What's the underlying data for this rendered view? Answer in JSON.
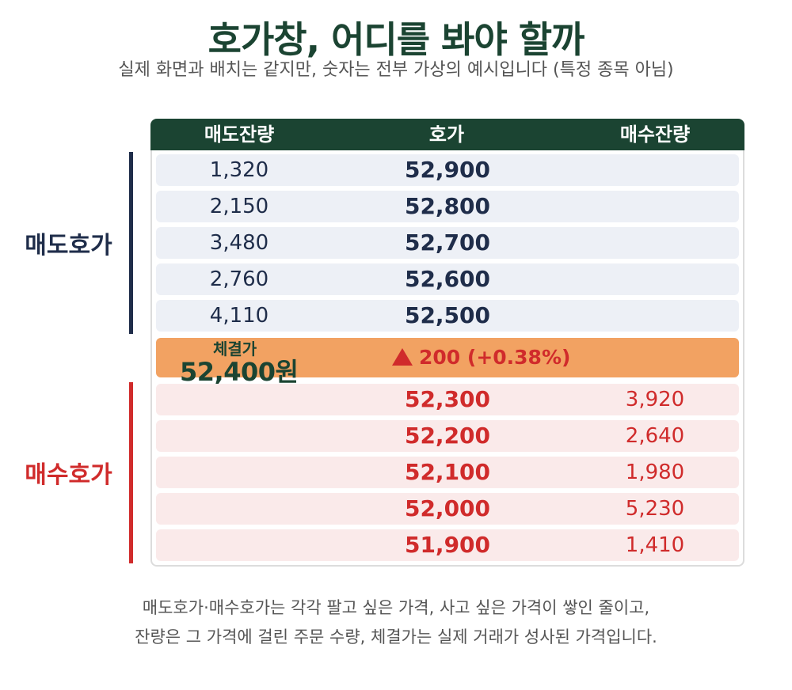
{
  "title": "호가창, 어디를 봐야 할까",
  "subtitle": "실제 화면과 배치는 같지만, 숫자는 전부 가상의 예시입니다 (특정 종목 아님)",
  "columns": {
    "ask_qty": "매도잔량",
    "price": "호가",
    "bid_qty": "매수잔량"
  },
  "ask_label": "매도호가",
  "bid_label": "매수호가",
  "asks": [
    {
      "qty": "1,320",
      "price": "52,900"
    },
    {
      "qty": "2,150",
      "price": "52,800"
    },
    {
      "qty": "3,480",
      "price": "52,700"
    },
    {
      "qty": "2,760",
      "price": "52,600"
    },
    {
      "qty": "4,110",
      "price": "52,500"
    }
  ],
  "trade": {
    "label": "체결가",
    "price": "52,400원",
    "change": "200 (+0.38%)"
  },
  "bids": [
    {
      "price": "52,300",
      "qty": "3,920"
    },
    {
      "price": "52,200",
      "qty": "2,640"
    },
    {
      "price": "52,100",
      "qty": "1,980"
    },
    {
      "price": "52,000",
      "qty": "5,230"
    },
    {
      "price": "51,900",
      "qty": "1,410"
    }
  ],
  "footer": {
    "line1": "매도호가·매수호가는 각각 팔고 싶은 가격, 사고 싶은 가격이 쌓인 줄이고,",
    "line2": "잔량은 그 가격에 걸린 주문 수량, 체결가는 실제 거래가 성사된 가격입니다."
  },
  "colors": {
    "header": "#1b4432",
    "ask": "#1f2d4a",
    "bid": "#d02b2b",
    "trade": "#f2a262"
  }
}
